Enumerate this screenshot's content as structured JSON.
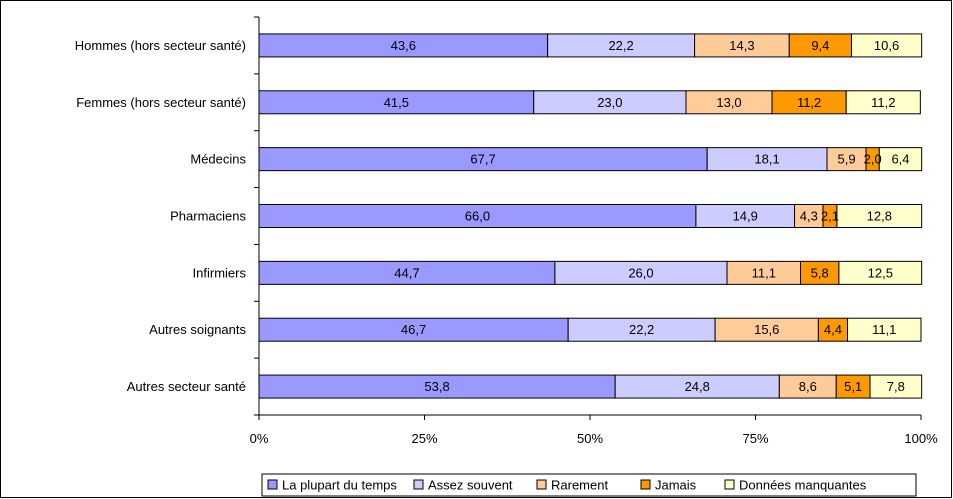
{
  "chart_data": {
    "type": "bar",
    "orientation": "horizontal",
    "stacked": true,
    "percent_stacked": true,
    "categories": [
      "Hommes (hors secteur santé)",
      "Femmes (hors secteur santé)",
      "Médecins",
      "Pharmaciens",
      "Infirmiers",
      "Autres soignants",
      "Autres secteur santé"
    ],
    "series": [
      {
        "name": "La plupart du temps",
        "color": "#9999ff",
        "values": [
          43.6,
          41.5,
          67.7,
          66.0,
          44.7,
          46.7,
          53.8
        ],
        "labels": [
          "43,6",
          "41,5",
          "67,7",
          "66,0",
          "44,7",
          "46,7",
          "53,8"
        ]
      },
      {
        "name": "Assez souvent",
        "color": "#ccccff",
        "values": [
          22.2,
          23.0,
          18.1,
          14.9,
          26.0,
          22.2,
          24.8
        ],
        "labels": [
          "22,2",
          "23,0",
          "18,1",
          "14,9",
          "26,0",
          "22,2",
          "24,8"
        ]
      },
      {
        "name": "Rarement",
        "color": "#ffcc99",
        "values": [
          14.3,
          13.0,
          5.9,
          4.3,
          11.1,
          15.6,
          8.6
        ],
        "labels": [
          "14,3",
          "13,0",
          "5,9",
          "4,3",
          "11,1",
          "15,6",
          "8,6"
        ]
      },
      {
        "name": "Jamais",
        "color": "#ff9900",
        "values": [
          9.4,
          11.2,
          2.0,
          2.1,
          5.8,
          4.4,
          5.1
        ],
        "labels": [
          "9,4",
          "11,2",
          "2,0",
          "2,1",
          "5,8",
          "4,4",
          "5,1"
        ]
      },
      {
        "name": "Données manquantes",
        "color": "#ffffcc",
        "values": [
          10.6,
          11.2,
          6.4,
          12.8,
          12.5,
          11.1,
          7.8
        ],
        "labels": [
          "10,6",
          "11,2",
          "6,4",
          "12,8",
          "12,5",
          "11,1",
          "7,8"
        ]
      }
    ],
    "x_ticks": [
      "0%",
      "25%",
      "50%",
      "75%",
      "100%"
    ],
    "xlim": [
      0,
      100
    ],
    "title": "",
    "xlabel": "",
    "ylabel": "",
    "grid": false,
    "legend": "bottom"
  }
}
